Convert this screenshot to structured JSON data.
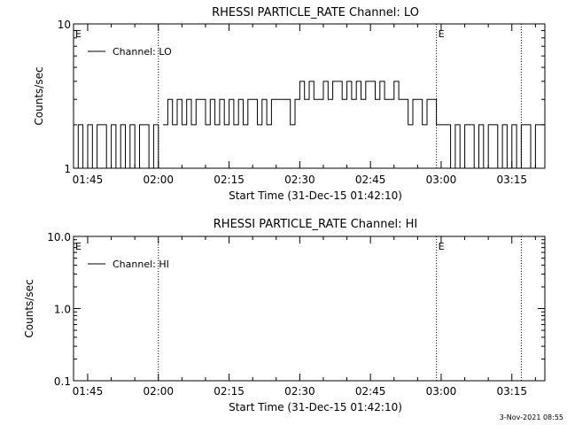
{
  "footer": {
    "timestamp": "3-Nov-2021 08:55"
  },
  "chart_data": [
    {
      "type": "line",
      "title": "RHESSI PARTICLE_RATE Channel: LO",
      "xlabel": "Start Time (31-Dec-15 01:42:10)",
      "ylabel": "Counts/sec",
      "yscale": "log",
      "ylim": [
        1,
        10
      ],
      "ytick_labels": [
        "1",
        "10"
      ],
      "xlim": [
        "01:42",
        "03:22"
      ],
      "xtick_labels": [
        "01:45",
        "02:00",
        "02:15",
        "02:30",
        "02:45",
        "03:00",
        "03:15"
      ],
      "legend": {
        "placement": "top-left",
        "entries": [
          "Channel: LO"
        ]
      },
      "event_markers": [
        {
          "time": "01:42",
          "label": "E"
        },
        {
          "time": "02:00",
          "label": ""
        },
        {
          "time": "02:59",
          "label": "E"
        },
        {
          "time": "03:17",
          "label": ""
        }
      ],
      "series": [
        {
          "name": "Channel: LO",
          "segments": [
            {
              "x": [
                "01:42",
                "01:43",
                "01:44",
                "01:45",
                "01:46",
                "01:47",
                "01:48",
                "01:49",
                "01:50",
                "01:51",
                "01:52",
                "01:53",
                "01:54",
                "01:55",
                "01:56",
                "01:57",
                "01:58",
                "01:59",
                "02:00"
              ],
              "values": [
                1,
                2,
                1,
                2,
                1,
                2,
                2,
                1,
                2,
                1,
                2,
                1,
                2,
                1,
                2,
                2,
                1,
                2,
                1
              ]
            },
            {
              "x": [
                "02:01",
                "02:02",
                "02:03",
                "02:04",
                "02:05",
                "02:06",
                "02:07",
                "02:08",
                "02:09",
                "02:10",
                "02:11",
                "02:12",
                "02:13",
                "02:14",
                "02:15",
                "02:16",
                "02:17",
                "02:18",
                "02:19",
                "02:20",
                "02:21",
                "02:22",
                "02:23",
                "02:24",
                "02:25",
                "02:26",
                "02:27",
                "02:28",
                "02:29",
                "02:30",
                "02:31",
                "02:32",
                "02:33",
                "02:34",
                "02:35",
                "02:36",
                "02:37",
                "02:38",
                "02:39",
                "02:40",
                "02:41",
                "02:42",
                "02:43",
                "02:44",
                "02:45",
                "02:46",
                "02:47",
                "02:48",
                "02:49",
                "02:50",
                "02:51",
                "02:52",
                "02:53",
                "02:54",
                "02:55",
                "02:56",
                "02:57",
                "02:58",
                "02:59"
              ],
              "values": [
                2,
                3,
                2,
                3,
                2,
                3,
                2,
                3,
                3,
                2,
                3,
                2,
                3,
                2,
                3,
                2,
                3,
                2,
                3,
                3,
                2,
                3,
                2,
                3,
                3,
                3,
                3,
                2,
                3,
                4,
                3,
                4,
                3,
                3,
                4,
                3,
                4,
                4,
                3,
                4,
                3,
                4,
                3,
                4,
                4,
                3,
                4,
                3,
                3,
                4,
                3,
                3,
                2,
                3,
                3,
                2,
                3,
                3,
                2
              ]
            },
            {
              "x": [
                "03:00",
                "03:01",
                "03:02",
                "03:03",
                "03:04",
                "03:05",
                "03:06",
                "03:07",
                "03:08",
                "03:09",
                "03:10",
                "03:11",
                "03:12",
                "03:13",
                "03:14",
                "03:15",
                "03:16",
                "03:17",
                "03:18",
                "03:19",
                "03:20",
                "03:21"
              ],
              "values": [
                2,
                2,
                1,
                2,
                1,
                2,
                2,
                1,
                2,
                1,
                2,
                2,
                1,
                2,
                1,
                2,
                1,
                2,
                2,
                1,
                2,
                2
              ]
            }
          ]
        }
      ]
    },
    {
      "type": "line",
      "title": "RHESSI PARTICLE_RATE Channel: HI",
      "xlabel": "Start Time (31-Dec-15 01:42:10)",
      "ylabel": "Counts/sec",
      "yscale": "log",
      "ylim": [
        0.1,
        10
      ],
      "ytick_labels": [
        "0.1",
        "1.0",
        "10.0"
      ],
      "xlim": [
        "01:42",
        "03:22"
      ],
      "xtick_labels": [
        "01:45",
        "02:00",
        "02:15",
        "02:30",
        "02:45",
        "03:00",
        "03:15"
      ],
      "legend": {
        "placement": "top-left",
        "entries": [
          "Channel: HI"
        ]
      },
      "event_markers": [
        {
          "time": "01:42",
          "label": "E"
        },
        {
          "time": "02:00",
          "label": ""
        },
        {
          "time": "02:59",
          "label": "E"
        },
        {
          "time": "03:17",
          "label": ""
        }
      ],
      "series": [
        {
          "name": "Channel: HI",
          "segments": []
        }
      ]
    }
  ]
}
